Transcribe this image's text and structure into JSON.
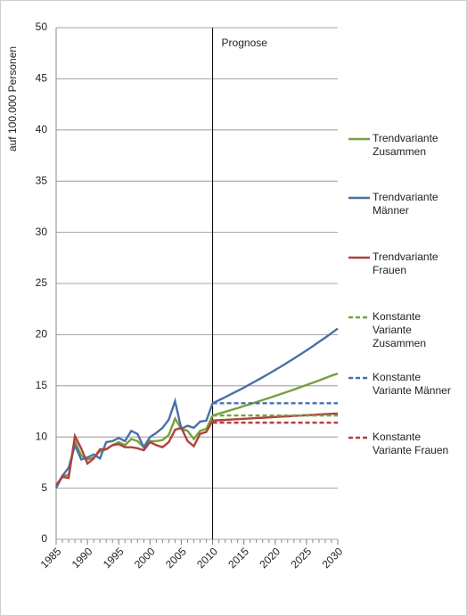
{
  "chart_data": {
    "type": "line",
    "y_label": "auf 100.000 Personen",
    "annotation": "Prognose",
    "annotation_x": 2010,
    "x": [
      1985,
      1986,
      1987,
      1988,
      1989,
      1990,
      1991,
      1992,
      1993,
      1994,
      1995,
      1996,
      1997,
      1998,
      1999,
      2000,
      2001,
      2002,
      2003,
      2004,
      2005,
      2006,
      2007,
      2008,
      2009,
      2010,
      2011,
      2012,
      2013,
      2014,
      2015,
      2016,
      2017,
      2018,
      2019,
      2020,
      2021,
      2022,
      2023,
      2024,
      2025,
      2026,
      2027,
      2028,
      2029,
      2030
    ],
    "xlim": [
      1985,
      2030
    ],
    "xticks": [
      1985,
      1990,
      1995,
      2000,
      2005,
      2010,
      2015,
      2020,
      2025,
      2030
    ],
    "ylim": [
      0,
      50
    ],
    "yticks": [
      0,
      5,
      10,
      15,
      20,
      25,
      30,
      35,
      40,
      45,
      50
    ],
    "grid": true,
    "series": [
      {
        "name": "Trendvariante Zusammen",
        "color": "#77a03c",
        "dashed": false,
        "values": [
          5.2,
          6.2,
          6.3,
          9.6,
          8.2,
          7.8,
          8.0,
          8.6,
          8.8,
          9.2,
          9.5,
          9.2,
          9.8,
          9.6,
          9.0,
          9.6,
          9.6,
          9.7,
          10.2,
          11.8,
          10.8,
          10.6,
          9.8,
          10.6,
          10.8,
          12.1,
          12.28,
          12.46,
          12.64,
          12.83,
          13.02,
          13.21,
          13.41,
          13.61,
          13.81,
          14.01,
          14.22,
          14.43,
          14.64,
          14.86,
          15.08,
          15.3,
          15.53,
          15.76,
          15.99,
          16.2
        ]
      },
      {
        "name": "Trendvariante Männer",
        "color": "#4a70a8",
        "dashed": false,
        "values": [
          5.0,
          6.2,
          7.0,
          9.2,
          7.8,
          8.0,
          8.3,
          7.9,
          9.5,
          9.6,
          9.9,
          9.6,
          10.6,
          10.3,
          9.0,
          10.0,
          10.4,
          10.9,
          11.7,
          13.5,
          10.8,
          11.1,
          10.9,
          11.5,
          11.6,
          13.3,
          13.59,
          13.89,
          14.2,
          14.51,
          14.83,
          15.16,
          15.5,
          15.84,
          16.19,
          16.55,
          16.91,
          17.29,
          17.67,
          18.06,
          18.46,
          18.87,
          19.29,
          19.71,
          20.15,
          20.6
        ]
      },
      {
        "name": "Trendvariante Frauen",
        "color": "#b0413c",
        "dashed": false,
        "values": [
          5.3,
          6.1,
          6.0,
          10.1,
          8.9,
          7.4,
          7.9,
          8.8,
          8.8,
          9.2,
          9.3,
          9.0,
          9.0,
          8.9,
          8.7,
          9.5,
          9.2,
          9.0,
          9.5,
          10.7,
          10.9,
          9.6,
          9.1,
          10.3,
          10.5,
          11.6,
          11.64,
          11.67,
          11.71,
          11.74,
          11.78,
          11.81,
          11.85,
          11.88,
          11.92,
          11.95,
          11.99,
          12.02,
          12.06,
          12.09,
          12.13,
          12.16,
          12.2,
          12.23,
          12.27,
          12.3
        ]
      },
      {
        "name": "Konstante Variante Zusammen",
        "color": "#77a03c",
        "dashed": true,
        "values": [
          null,
          null,
          null,
          null,
          null,
          null,
          null,
          null,
          null,
          null,
          null,
          null,
          null,
          null,
          null,
          null,
          null,
          null,
          null,
          null,
          null,
          null,
          null,
          null,
          null,
          12.1,
          12.1,
          12.1,
          12.1,
          12.1,
          12.1,
          12.1,
          12.1,
          12.1,
          12.1,
          12.1,
          12.1,
          12.1,
          12.1,
          12.1,
          12.1,
          12.1,
          12.1,
          12.1,
          12.1,
          12.1
        ]
      },
      {
        "name": "Konstante Variante Männer",
        "color": "#4a70a8",
        "dashed": true,
        "values": [
          null,
          null,
          null,
          null,
          null,
          null,
          null,
          null,
          null,
          null,
          null,
          null,
          null,
          null,
          null,
          null,
          null,
          null,
          null,
          null,
          null,
          null,
          null,
          null,
          null,
          13.3,
          13.3,
          13.3,
          13.3,
          13.3,
          13.3,
          13.3,
          13.3,
          13.3,
          13.3,
          13.3,
          13.3,
          13.3,
          13.3,
          13.3,
          13.3,
          13.3,
          13.3,
          13.3,
          13.3,
          13.3
        ]
      },
      {
        "name": "Konstante Variante Frauen",
        "color": "#b0413c",
        "dashed": true,
        "values": [
          null,
          null,
          null,
          null,
          null,
          null,
          null,
          null,
          null,
          null,
          null,
          null,
          null,
          null,
          null,
          null,
          null,
          null,
          null,
          null,
          null,
          null,
          null,
          null,
          null,
          11.4,
          11.4,
          11.4,
          11.4,
          11.4,
          11.4,
          11.4,
          11.4,
          11.4,
          11.4,
          11.4,
          11.4,
          11.4,
          11.4,
          11.4,
          11.4,
          11.4,
          11.4,
          11.4,
          11.4,
          11.4
        ]
      }
    ]
  }
}
